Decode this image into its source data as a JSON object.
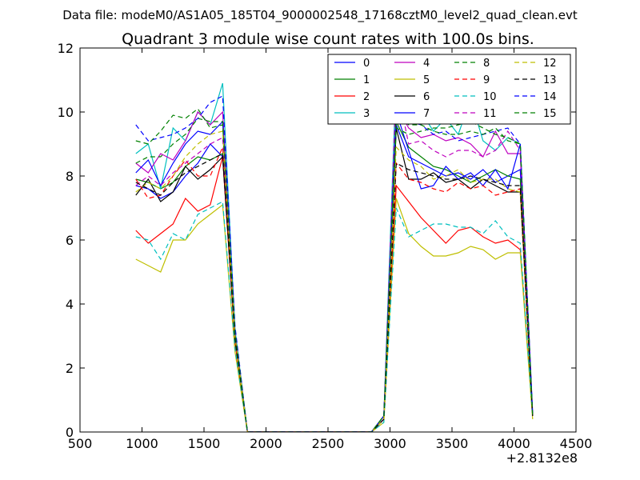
{
  "chart_data": {
    "type": "line",
    "header": "Data file: modeM0/AS1A05_185T04_9000002548_17168cztM0_level2_quad_clean.evt",
    "title": "Quadrant 3 module wise count rates with 100.0s bins.",
    "xlabel": "",
    "ylabel": "",
    "x_offset_label": "+2.8132e8",
    "xlim": [
      500,
      4500
    ],
    "ylim": [
      0,
      12
    ],
    "xticks": [
      "500",
      "1000",
      "1500",
      "2000",
      "2500",
      "3000",
      "3500",
      "4000",
      "4500"
    ],
    "yticks": [
      "0",
      "2",
      "4",
      "6",
      "8",
      "10",
      "12"
    ],
    "grid": false,
    "legend_position": "top-right",
    "x": [
      950,
      1050,
      1150,
      1250,
      1350,
      1450,
      1550,
      1650,
      1750,
      1850,
      1950,
      2050,
      2150,
      2250,
      2350,
      2450,
      2550,
      2650,
      2750,
      2850,
      2950,
      3050,
      3150,
      3250,
      3350,
      3450,
      3550,
      3650,
      3750,
      3850,
      3950,
      4050,
      4150
    ],
    "series": [
      {
        "name": "0",
        "color": "#0000ff",
        "dash": "solid",
        "values": [
          7.7,
          7.6,
          7.3,
          7.5,
          8.0,
          8.4,
          9.0,
          8.6,
          3.0,
          0.0,
          0.0,
          0.0,
          0.0,
          0.0,
          0.0,
          0.0,
          0.0,
          0.0,
          0.0,
          0.0,
          0.5,
          9.6,
          8.6,
          8.4,
          8.2,
          8.0,
          8.1,
          7.9,
          8.2,
          7.8,
          8.0,
          8.2,
          0.5
        ]
      },
      {
        "name": "1",
        "color": "#008000",
        "dash": "solid",
        "values": [
          7.9,
          7.8,
          7.6,
          7.8,
          8.3,
          8.6,
          8.5,
          8.7,
          2.9,
          0.0,
          0.0,
          0.0,
          0.0,
          0.0,
          0.0,
          0.0,
          0.0,
          0.0,
          0.0,
          0.0,
          0.4,
          9.7,
          8.9,
          8.6,
          8.3,
          8.2,
          8.0,
          7.8,
          8.0,
          8.2,
          8.0,
          7.9,
          0.5
        ]
      },
      {
        "name": "2",
        "color": "#ff0000",
        "dash": "solid",
        "values": [
          6.3,
          5.9,
          6.2,
          6.5,
          7.3,
          6.9,
          7.1,
          8.6,
          2.8,
          0.0,
          0.0,
          0.0,
          0.0,
          0.0,
          0.0,
          0.0,
          0.0,
          0.0,
          0.0,
          0.0,
          0.4,
          7.7,
          7.2,
          6.7,
          6.3,
          5.9,
          6.3,
          6.4,
          6.1,
          5.9,
          6.0,
          5.7,
          0.5
        ]
      },
      {
        "name": "3",
        "color": "#00bfbf",
        "dash": "solid",
        "values": [
          8.7,
          9.0,
          7.6,
          9.5,
          9.1,
          10.0,
          9.6,
          10.9,
          3.2,
          0.0,
          0.0,
          0.0,
          0.0,
          0.0,
          0.0,
          0.0,
          0.0,
          0.0,
          0.0,
          0.0,
          0.5,
          11.2,
          10.5,
          10.0,
          9.4,
          9.8,
          9.3,
          10.4,
          9.1,
          8.8,
          9.2,
          9.0,
          0.5
        ]
      },
      {
        "name": "4",
        "color": "#bf00bf",
        "dash": "solid",
        "values": [
          8.4,
          8.1,
          8.7,
          8.5,
          9.1,
          10.0,
          9.6,
          10.0,
          3.1,
          0.0,
          0.0,
          0.0,
          0.0,
          0.0,
          0.0,
          0.0,
          0.0,
          0.0,
          0.0,
          0.0,
          0.5,
          10.2,
          9.5,
          9.2,
          9.3,
          9.1,
          9.2,
          9.0,
          8.6,
          9.4,
          8.7,
          8.7,
          0.5
        ]
      },
      {
        "name": "5",
        "color": "#bfbf00",
        "dash": "solid",
        "values": [
          5.4,
          5.2,
          5.0,
          6.0,
          6.0,
          6.5,
          6.8,
          7.1,
          2.5,
          0.0,
          0.0,
          0.0,
          0.0,
          0.0,
          0.0,
          0.0,
          0.0,
          0.0,
          0.0,
          0.0,
          0.3,
          7.3,
          6.2,
          5.8,
          5.5,
          5.5,
          5.6,
          5.8,
          5.7,
          5.4,
          5.6,
          5.6,
          0.4
        ]
      },
      {
        "name": "6",
        "color": "#000000",
        "dash": "solid",
        "values": [
          7.4,
          7.9,
          7.2,
          7.5,
          8.3,
          7.9,
          8.2,
          8.6,
          2.9,
          0.0,
          0.0,
          0.0,
          0.0,
          0.0,
          0.0,
          0.0,
          0.0,
          0.0,
          0.0,
          0.0,
          0.4,
          9.5,
          7.9,
          7.9,
          8.1,
          7.8,
          7.9,
          7.6,
          7.9,
          7.7,
          7.5,
          7.5,
          0.5
        ]
      },
      {
        "name": "7",
        "color": "#0000ff",
        "dash": "solid",
        "values": [
          8.1,
          8.5,
          7.7,
          8.4,
          9.0,
          9.4,
          9.3,
          9.7,
          3.1,
          0.0,
          0.0,
          0.0,
          0.0,
          0.0,
          0.0,
          0.0,
          0.0,
          0.0,
          0.0,
          0.0,
          0.5,
          10.0,
          8.8,
          7.6,
          7.7,
          8.3,
          7.9,
          8.1,
          7.7,
          8.2,
          7.6,
          9.0,
          0.6
        ]
      },
      {
        "name": "8",
        "color": "#008000",
        "dash": "dash",
        "values": [
          8.4,
          8.6,
          8.6,
          9.0,
          9.3,
          9.8,
          9.7,
          9.7,
          3.1,
          0.0,
          0.0,
          0.0,
          0.0,
          0.0,
          0.0,
          0.0,
          0.0,
          0.0,
          0.0,
          0.0,
          0.5,
          9.5,
          9.3,
          9.4,
          9.5,
          9.5,
          9.6,
          9.7,
          9.5,
          9.3,
          9.2,
          9.0,
          0.5
        ]
      },
      {
        "name": "9",
        "color": "#ff0000",
        "dash": "dash",
        "values": [
          7.9,
          7.3,
          7.4,
          8.0,
          8.5,
          8.0,
          8.0,
          8.9,
          2.9,
          0.0,
          0.0,
          0.0,
          0.0,
          0.0,
          0.0,
          0.0,
          0.0,
          0.0,
          0.0,
          0.0,
          0.4,
          8.4,
          7.9,
          7.8,
          7.6,
          7.5,
          7.8,
          7.6,
          7.7,
          7.4,
          7.5,
          7.6,
          0.5
        ]
      },
      {
        "name": "10",
        "color": "#00bfbf",
        "dash": "dash",
        "values": [
          6.1,
          6.0,
          5.4,
          6.2,
          6.0,
          6.8,
          7.0,
          7.2,
          2.6,
          0.0,
          0.0,
          0.0,
          0.0,
          0.0,
          0.0,
          0.0,
          0.0,
          0.0,
          0.0,
          0.0,
          0.3,
          7.0,
          6.1,
          6.3,
          6.5,
          6.5,
          6.4,
          6.4,
          6.2,
          6.6,
          6.1,
          5.9,
          0.5
        ]
      },
      {
        "name": "11",
        "color": "#bf00bf",
        "dash": "dash",
        "values": [
          7.7,
          8.0,
          7.7,
          8.1,
          8.4,
          8.7,
          9.0,
          9.2,
          3.0,
          0.0,
          0.0,
          0.0,
          0.0,
          0.0,
          0.0,
          0.0,
          0.0,
          0.0,
          0.0,
          0.0,
          0.4,
          10.9,
          9.0,
          9.1,
          8.8,
          8.6,
          8.8,
          8.8,
          8.6,
          8.8,
          9.4,
          8.8,
          0.5
        ]
      },
      {
        "name": "12",
        "color": "#bfbf00",
        "dash": "dash",
        "values": [
          7.5,
          7.8,
          7.6,
          8.0,
          8.6,
          9.0,
          9.3,
          9.4,
          3.0,
          0.0,
          0.0,
          0.0,
          0.0,
          0.0,
          0.0,
          0.0,
          0.0,
          0.0,
          0.0,
          0.0,
          0.4,
          8.9,
          8.5,
          8.3,
          7.9,
          8.0,
          8.2,
          7.8,
          7.9,
          7.9,
          7.6,
          7.5,
          0.5
        ]
      },
      {
        "name": "13",
        "color": "#000000",
        "dash": "dash",
        "values": [
          7.8,
          7.6,
          7.4,
          7.8,
          8.1,
          8.3,
          8.5,
          8.7,
          2.9,
          0.0,
          0.0,
          0.0,
          0.0,
          0.0,
          0.0,
          0.0,
          0.0,
          0.0,
          0.0,
          0.0,
          0.4,
          8.4,
          8.2,
          8.1,
          8.0,
          7.9,
          7.9,
          8.0,
          7.9,
          7.8,
          7.7,
          7.7,
          0.5
        ]
      },
      {
        "name": "14",
        "color": "#0000ff",
        "dash": "dash",
        "values": [
          9.6,
          9.1,
          9.2,
          9.3,
          9.5,
          9.8,
          10.3,
          10.5,
          3.3,
          0.0,
          0.0,
          0.0,
          0.0,
          0.0,
          0.0,
          0.0,
          0.0,
          0.0,
          0.0,
          0.0,
          0.5,
          10.0,
          9.7,
          9.6,
          9.3,
          9.4,
          9.1,
          9.2,
          9.3,
          9.4,
          9.5,
          9.0,
          0.5
        ]
      },
      {
        "name": "15",
        "color": "#008000",
        "dash": "dash",
        "values": [
          9.1,
          9.0,
          9.4,
          9.9,
          9.8,
          10.1,
          9.5,
          9.6,
          3.1,
          0.0,
          0.0,
          0.0,
          0.0,
          0.0,
          0.0,
          0.0,
          0.0,
          0.0,
          0.0,
          0.0,
          0.5,
          9.9,
          9.6,
          9.6,
          9.4,
          9.3,
          9.3,
          9.4,
          9.3,
          9.5,
          9.1,
          9.0,
          0.5
        ]
      }
    ]
  }
}
